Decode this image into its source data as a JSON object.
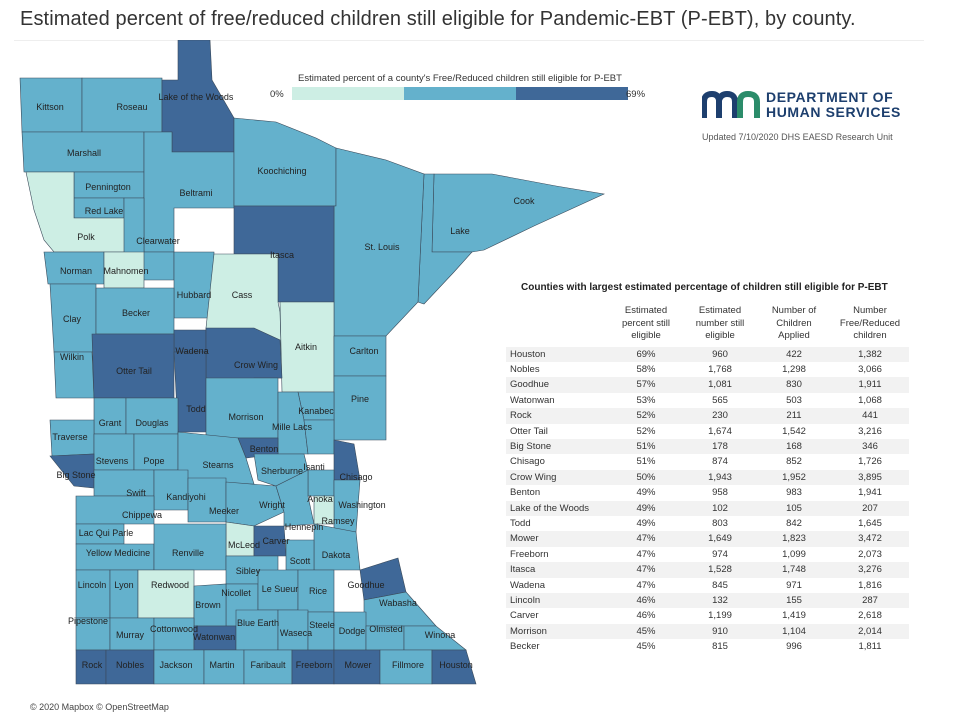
{
  "title": "Estimated percent of free/reduced children still eligible for Pandemic-EBT (P-EBT), by county.",
  "colors": {
    "low": "#cdeee4",
    "mid": "#64b1cc",
    "high": "#3f6898",
    "border": "#3a4a5a"
  },
  "legend": {
    "title": "Estimated percent of a county's Free/Reduced children still eligible for P-EBT",
    "min": "0%",
    "max": "69%",
    "bins": [
      "#cdeee4",
      "#64b1cc",
      "#3f6898"
    ]
  },
  "logo": {
    "line1": "DEPARTMENT OF",
    "line2": "HUMAN SERVICES"
  },
  "updated": "Updated 7/10/2020 DHS EAESD Research Unit",
  "credit": "© 2020 Mapbox © OpenStreetMap",
  "table": {
    "title": "Counties with largest estimated percentage of children still eligible for P-EBT",
    "columns": [
      {
        "lines": [
          "",
          "",
          ""
        ]
      },
      {
        "lines": [
          "Estimated",
          "percent still",
          "eligible"
        ]
      },
      {
        "lines": [
          "Estimated",
          "number still",
          "eligible"
        ]
      },
      {
        "lines": [
          "Number of",
          "Children",
          "Applied"
        ]
      },
      {
        "lines": [
          "Number",
          "Free/Reduced",
          "children"
        ]
      }
    ],
    "rows": [
      [
        "Houston",
        "69%",
        "960",
        "422",
        "1,382"
      ],
      [
        "Nobles",
        "58%",
        "1,768",
        "1,298",
        "3,066"
      ],
      [
        "Goodhue",
        "57%",
        "1,081",
        "830",
        "1,911"
      ],
      [
        "Watonwan",
        "53%",
        "565",
        "503",
        "1,068"
      ],
      [
        "Rock",
        "52%",
        "230",
        "211",
        "441"
      ],
      [
        "Otter Tail",
        "52%",
        "1,674",
        "1,542",
        "3,216"
      ],
      [
        "Big Stone",
        "51%",
        "178",
        "168",
        "346"
      ],
      [
        "Chisago",
        "51%",
        "874",
        "852",
        "1,726"
      ],
      [
        "Crow Wing",
        "50%",
        "1,943",
        "1,952",
        "3,895"
      ],
      [
        "Benton",
        "49%",
        "958",
        "983",
        "1,941"
      ],
      [
        "Lake of the Woods",
        "49%",
        "102",
        "105",
        "207"
      ],
      [
        "Todd",
        "49%",
        "803",
        "842",
        "1,645"
      ],
      [
        "Mower",
        "47%",
        "1,649",
        "1,823",
        "3,472"
      ],
      [
        "Freeborn",
        "47%",
        "974",
        "1,099",
        "2,073"
      ],
      [
        "Itasca",
        "47%",
        "1,528",
        "1,748",
        "3,276"
      ],
      [
        "Wadena",
        "47%",
        "845",
        "971",
        "1,816"
      ],
      [
        "Lincoln",
        "46%",
        "132",
        "155",
        "287"
      ],
      [
        "Carver",
        "46%",
        "1,199",
        "1,419",
        "2,618"
      ],
      [
        "Morrison",
        "45%",
        "910",
        "1,104",
        "2,014"
      ],
      [
        "Becker",
        "45%",
        "815",
        "996",
        "1,811"
      ]
    ]
  },
  "counties": [
    {
      "name": "Kittson",
      "level": "mid"
    },
    {
      "name": "Roseau",
      "level": "mid"
    },
    {
      "name": "Lake of the Woods",
      "level": "high"
    },
    {
      "name": "Marshall",
      "level": "mid"
    },
    {
      "name": "Pennington",
      "level": "mid"
    },
    {
      "name": "Red Lake",
      "level": "mid"
    },
    {
      "name": "Polk",
      "level": "low"
    },
    {
      "name": "Beltrami",
      "level": "mid"
    },
    {
      "name": "Koochiching",
      "level": "mid"
    },
    {
      "name": "Cook",
      "level": "mid"
    },
    {
      "name": "Lake",
      "level": "mid"
    },
    {
      "name": "St. Louis",
      "level": "mid"
    },
    {
      "name": "Clearwater",
      "level": "mid"
    },
    {
      "name": "Itasca",
      "level": "high"
    },
    {
      "name": "Norman",
      "level": "mid"
    },
    {
      "name": "Mahnomen",
      "level": "low"
    },
    {
      "name": "Hubbard",
      "level": "mid"
    },
    {
      "name": "Cass",
      "level": "low"
    },
    {
      "name": "Clay",
      "level": "mid"
    },
    {
      "name": "Becker",
      "level": "mid"
    },
    {
      "name": "Wadena",
      "level": "high"
    },
    {
      "name": "Aitkin",
      "level": "low"
    },
    {
      "name": "Carlton",
      "level": "mid"
    },
    {
      "name": "Crow Wing",
      "level": "high"
    },
    {
      "name": "Wilkin",
      "level": "mid"
    },
    {
      "name": "Otter Tail",
      "level": "high"
    },
    {
      "name": "Pine",
      "level": "mid"
    },
    {
      "name": "Todd",
      "level": "high"
    },
    {
      "name": "Morrison",
      "level": "mid"
    },
    {
      "name": "Kanabec",
      "level": "mid"
    },
    {
      "name": "Grant",
      "level": "mid"
    },
    {
      "name": "Douglas",
      "level": "mid"
    },
    {
      "name": "Mille Lacs",
      "level": "mid"
    },
    {
      "name": "Traverse",
      "level": "mid"
    },
    {
      "name": "Benton",
      "level": "high"
    },
    {
      "name": "Stevens",
      "level": "mid"
    },
    {
      "name": "Pope",
      "level": "mid"
    },
    {
      "name": "Stearns",
      "level": "mid"
    },
    {
      "name": "Sherburne",
      "level": "mid"
    },
    {
      "name": "Isanti",
      "level": "mid"
    },
    {
      "name": "Big Stone",
      "level": "high"
    },
    {
      "name": "Chisago",
      "level": "high"
    },
    {
      "name": "Swift",
      "level": "mid"
    },
    {
      "name": "Kandiyohi",
      "level": "mid"
    },
    {
      "name": "Anoka",
      "level": "mid"
    },
    {
      "name": "Washington",
      "level": "mid"
    },
    {
      "name": "Chippewa",
      "level": "mid"
    },
    {
      "name": "Meeker",
      "level": "mid"
    },
    {
      "name": "Wright",
      "level": "mid"
    },
    {
      "name": "Hennepin",
      "level": "mid"
    },
    {
      "name": "Ramsey",
      "level": "low"
    },
    {
      "name": "Lac Qui Parle",
      "level": "mid"
    },
    {
      "name": "McLeod",
      "level": "low"
    },
    {
      "name": "Carver",
      "level": "high"
    },
    {
      "name": "Yellow Medicine",
      "level": "mid"
    },
    {
      "name": "Renville",
      "level": "mid"
    },
    {
      "name": "Dakota",
      "level": "mid"
    },
    {
      "name": "Scott",
      "level": "mid"
    },
    {
      "name": "Sibley",
      "level": "mid"
    },
    {
      "name": "Goodhue",
      "level": "high"
    },
    {
      "name": "Lincoln",
      "level": "mid"
    },
    {
      "name": "Lyon",
      "level": "mid"
    },
    {
      "name": "Redwood",
      "level": "low"
    },
    {
      "name": "Nicollet",
      "level": "mid"
    },
    {
      "name": "Le Sueur",
      "level": "mid"
    },
    {
      "name": "Rice",
      "level": "mid"
    },
    {
      "name": "Wabasha",
      "level": "mid"
    },
    {
      "name": "Brown",
      "level": "mid"
    },
    {
      "name": "Pipestone",
      "level": "mid"
    },
    {
      "name": "Murray",
      "level": "mid"
    },
    {
      "name": "Cottonwood",
      "level": "mid"
    },
    {
      "name": "Watonwan",
      "level": "high"
    },
    {
      "name": "Blue Earth",
      "level": "mid"
    },
    {
      "name": "Waseca",
      "level": "mid"
    },
    {
      "name": "Steele",
      "level": "mid"
    },
    {
      "name": "Dodge",
      "level": "mid"
    },
    {
      "name": "Olmsted",
      "level": "mid"
    },
    {
      "name": "Winona",
      "level": "mid"
    },
    {
      "name": "Rock",
      "level": "high"
    },
    {
      "name": "Nobles",
      "level": "high"
    },
    {
      "name": "Jackson",
      "level": "mid"
    },
    {
      "name": "Martin",
      "level": "mid"
    },
    {
      "name": "Faribault",
      "level": "mid"
    },
    {
      "name": "Freeborn",
      "level": "high"
    },
    {
      "name": "Mower",
      "level": "high"
    },
    {
      "name": "Fillmore",
      "level": "mid"
    },
    {
      "name": "Houston",
      "level": "high"
    }
  ]
}
